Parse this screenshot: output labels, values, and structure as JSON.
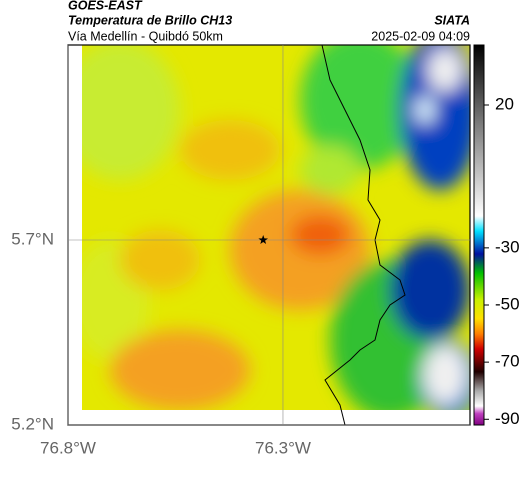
{
  "header": {
    "source": "GOES-EAST",
    "title": "Temperatura de Brillo CH13",
    "agency": "SIATA",
    "subtitle": "Vía Medellín - Quibdó 50km",
    "datetime": "2025-02-09 04:09"
  },
  "map": {
    "lonlim": [
      -76.8,
      -75.865
    ],
    "latlim": [
      5.2,
      6.227
    ],
    "lon_ticks": [
      {
        "value": -76.8,
        "label": "76.8°W"
      },
      {
        "value": -76.3,
        "label": "76.3°W"
      }
    ],
    "lat_ticks": [
      {
        "value": 5.2,
        "label": "5.2°N"
      },
      {
        "value": 5.7,
        "label": "5.7°N"
      }
    ],
    "marker": {
      "lon": -76.346,
      "lat": 5.7
    }
  },
  "colorbar": {
    "lim": [
      41,
      -92
    ],
    "ticks": [
      20,
      -30,
      -50,
      -70,
      -90
    ]
  }
}
